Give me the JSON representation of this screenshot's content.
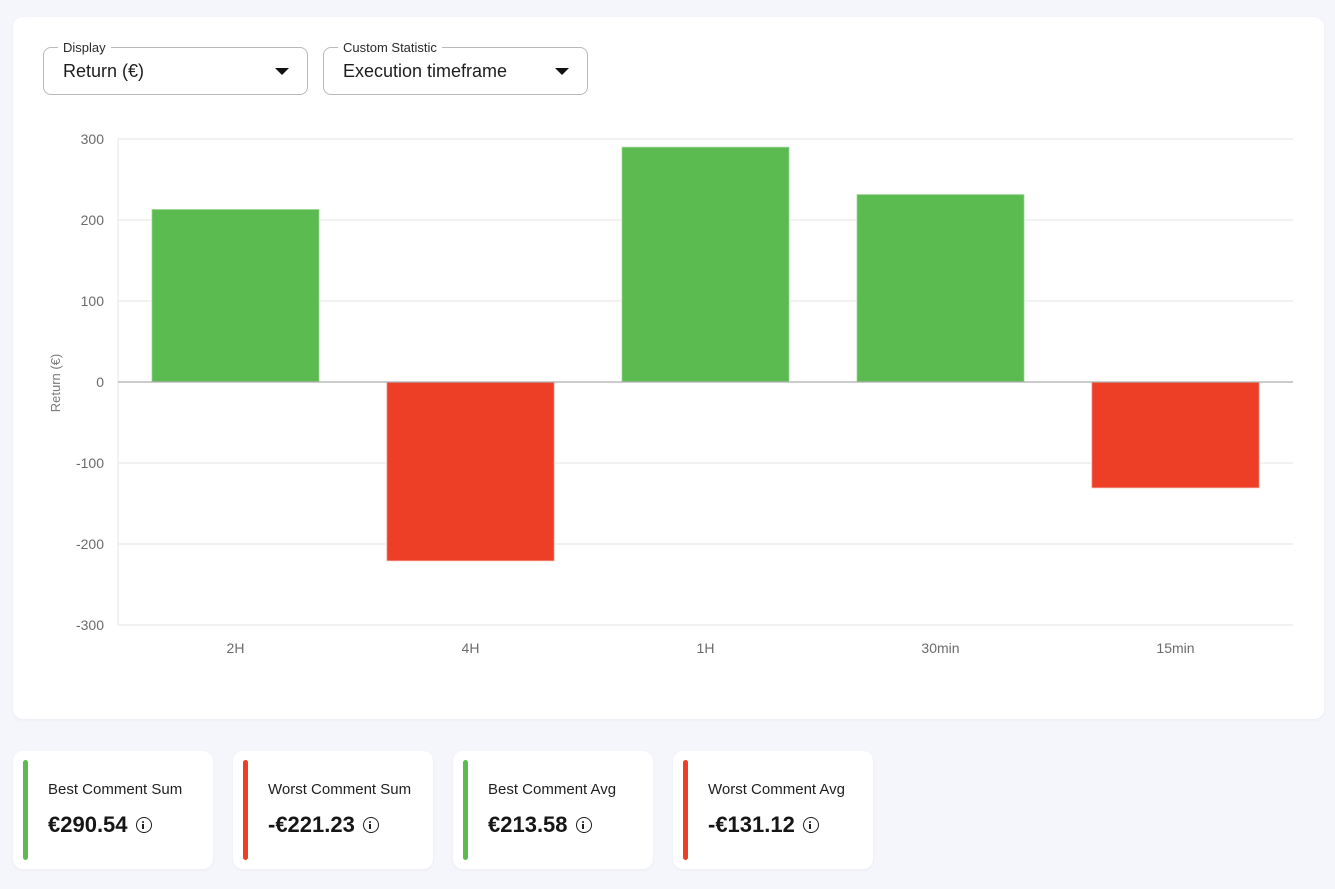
{
  "filters": {
    "display": {
      "legend": "Display",
      "value": "Return (€)"
    },
    "custom_statistic": {
      "legend": "Custom Statistic",
      "value": "Execution timeframe"
    }
  },
  "colors": {
    "positive": "#5bbb50",
    "negative": "#ec3f26",
    "grid": "#e6e6e6",
    "zero_line": "#9a9a9a"
  },
  "chart_data": {
    "type": "bar",
    "categories": [
      "2H",
      "4H",
      "1H",
      "30min",
      "15min"
    ],
    "values": [
      213.58,
      -221.23,
      290.54,
      232,
      -131.12
    ],
    "ylabel": "Return (€)",
    "xlabel": "",
    "ylim": [
      -300,
      300
    ],
    "yticks": [
      300,
      200,
      100,
      0,
      -100,
      -200,
      -300
    ],
    "grid": true,
    "legend": "none"
  },
  "stats": [
    {
      "label": "Best Comment Sum",
      "value": "€290.54",
      "tone": "positive"
    },
    {
      "label": "Worst Comment Sum",
      "value": "-€221.23",
      "tone": "negative"
    },
    {
      "label": "Best Comment Avg",
      "value": "€213.58",
      "tone": "positive"
    },
    {
      "label": "Worst Comment Avg",
      "value": "-€131.12",
      "tone": "negative"
    }
  ]
}
